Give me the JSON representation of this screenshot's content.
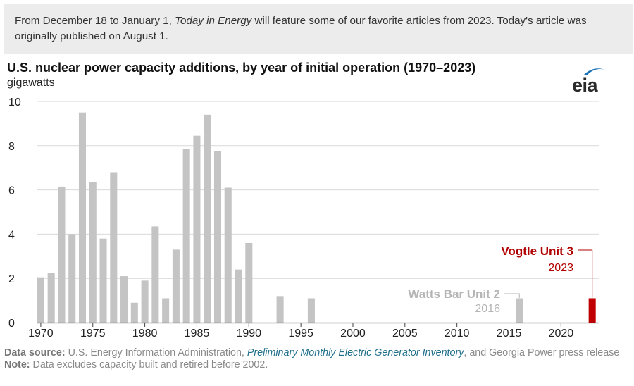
{
  "banner": {
    "part1": "From December 18 to January 1, ",
    "italic": "Today in Energy",
    "part2": " will feature some of our favorite articles from 2023. Today's article was originally published on August 1."
  },
  "header": {
    "title": "U.S. nuclear power capacity additions, by year of initial operation (1970–2023)",
    "unit": "gigawatts",
    "logo_text": "eia"
  },
  "colors": {
    "bar_default": "#c4c4c4",
    "bar_highlight": "#c00000",
    "grid": "#d9d9d9",
    "axis": "#444444",
    "label_gray": "#b5b5b5",
    "label_red": "#b00000"
  },
  "chart_data": {
    "type": "bar",
    "title": "U.S. nuclear power capacity additions, by year of initial operation (1970–2023)",
    "ylabel": "gigawatts",
    "xlabel": "",
    "ylim": [
      0,
      10
    ],
    "yticks": [
      0,
      2,
      4,
      6,
      8,
      10
    ],
    "xticks": [
      1970,
      1975,
      1980,
      1985,
      1990,
      1995,
      2000,
      2005,
      2010,
      2015,
      2020
    ],
    "grid": true,
    "legend": "none",
    "categories": [
      1970,
      1971,
      1972,
      1973,
      1974,
      1975,
      1976,
      1977,
      1978,
      1979,
      1980,
      1981,
      1982,
      1983,
      1984,
      1985,
      1986,
      1987,
      1988,
      1989,
      1990,
      1993,
      1996,
      2016,
      2023
    ],
    "values": [
      2.05,
      2.25,
      6.15,
      4.0,
      9.5,
      6.35,
      3.8,
      6.8,
      2.1,
      0.9,
      1.9,
      4.35,
      1.1,
      3.3,
      7.85,
      8.45,
      9.4,
      7.75,
      6.1,
      2.4,
      3.6,
      1.2,
      1.1,
      1.1,
      1.1
    ],
    "highlight": 2023,
    "annotations": [
      {
        "label": "Watts Bar Unit 2",
        "year_label": "2016",
        "year": 2016
      },
      {
        "label": "Vogtle Unit 3",
        "year_label": "2023",
        "year": 2023
      }
    ]
  },
  "footer": {
    "source_label": "Data source:",
    "source_text1": " U.S. Energy Information Administration, ",
    "source_link": "Preliminary Monthly Electric Generator Inventory",
    "source_text2": ", and Georgia Power press release",
    "note_label": "Note:",
    "note_text": " Data excludes capacity built and retired before 2002."
  }
}
